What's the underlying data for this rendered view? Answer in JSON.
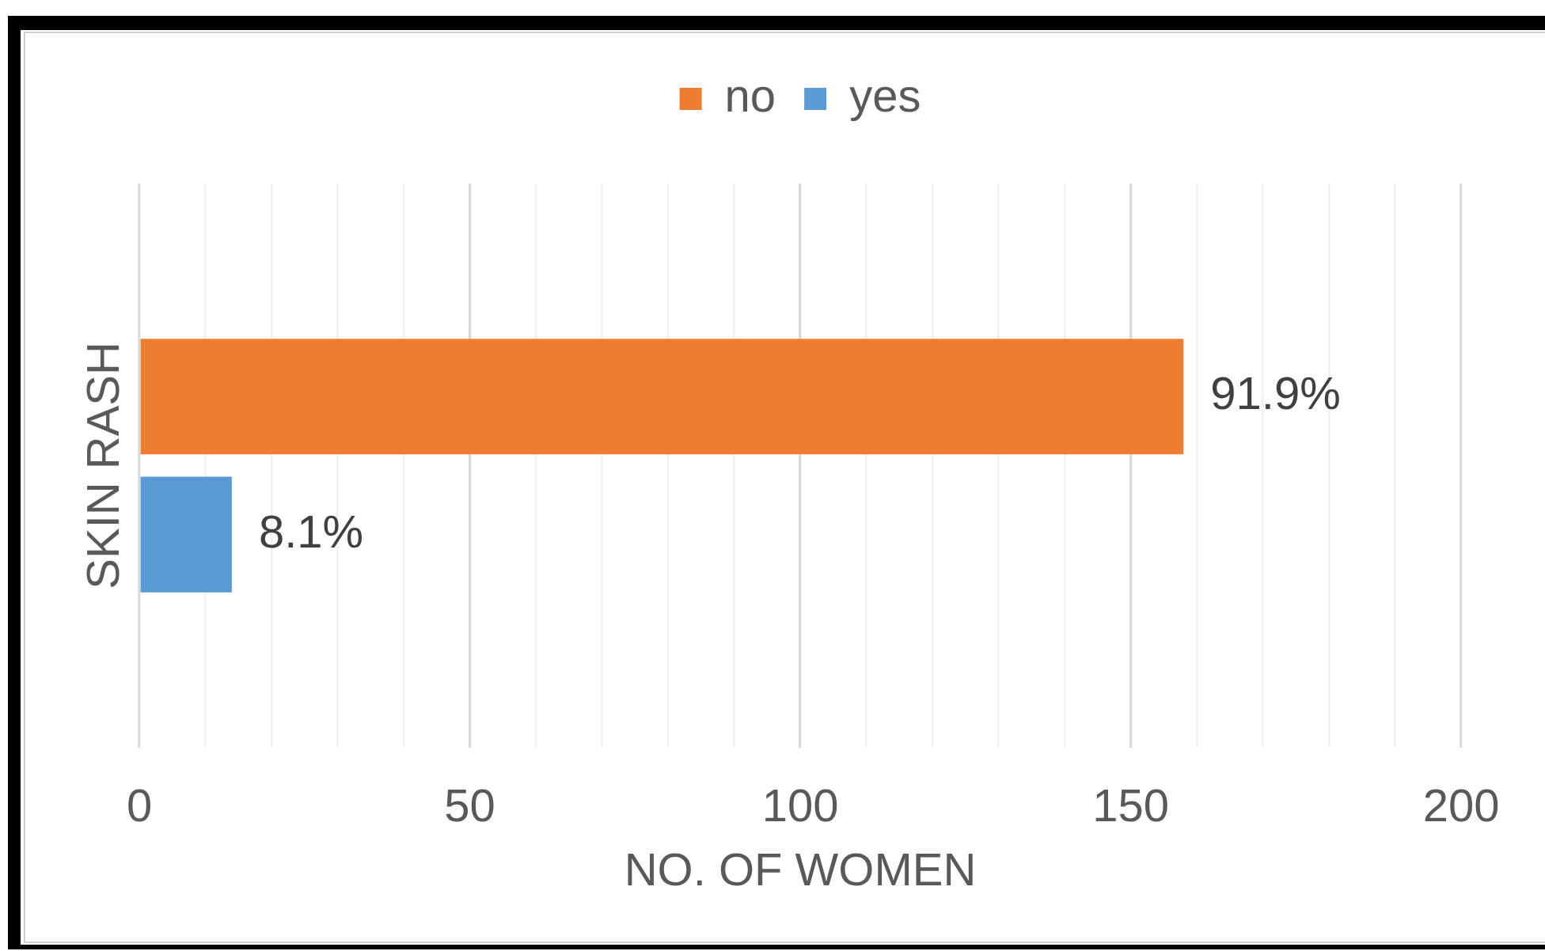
{
  "chart_data": {
    "type": "bar",
    "orientation": "horizontal",
    "categories": [
      "SKIN RASH"
    ],
    "series": [
      {
        "name": "no",
        "color": "#ed7d31",
        "values": [
          158
        ]
      },
      {
        "name": "yes",
        "color": "#5b9bd5",
        "values": [
          14
        ]
      }
    ],
    "xlabel": "NO. OF WOMEN",
    "xlim": [
      0,
      200
    ],
    "xticks": [
      0,
      {
        "value": 10,
        "label": null
      },
      {
        "value": 20,
        "label": null
      },
      {
        "value": 30,
        "label": null
      },
      {
        "value": 40,
        "label": null
      },
      50,
      {
        "value": 60,
        "label": null
      },
      {
        "value": 70,
        "label": null
      },
      {
        "value": 80,
        "label": null
      },
      {
        "value": 90,
        "label": null
      },
      100,
      {
        "value": 110,
        "label": null
      },
      {
        "value": 120,
        "label": null
      },
      {
        "value": 130,
        "label": null
      },
      {
        "value": 140,
        "label": null
      },
      150,
      {
        "value": 160,
        "label": null
      },
      {
        "value": 170,
        "label": null
      },
      {
        "value": 180,
        "label": null
      },
      {
        "value": 190,
        "label": null
      },
      200
    ],
    "annotations": [
      "91.9%",
      "8.1%"
    ],
    "grid": "x",
    "legend": "top"
  }
}
